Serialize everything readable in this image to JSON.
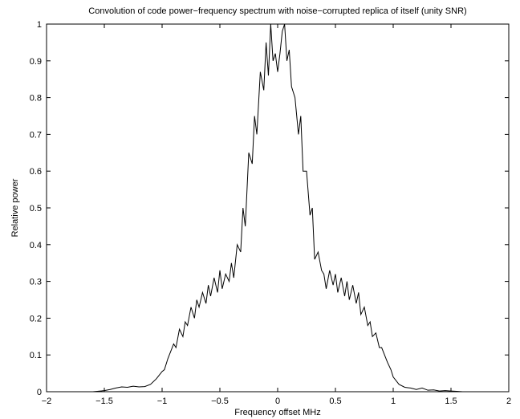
{
  "chart_data": {
    "type": "line",
    "title": "Convolution of code power−frequency spectrum with noise−corrupted replica of itself (unity SNR)",
    "xlabel": "Frequency offset MHz",
    "ylabel": "Relative power",
    "xlim": [
      -2,
      2
    ],
    "ylim": [
      0,
      1
    ],
    "xticks": [
      -2,
      -1.5,
      -1,
      -0.5,
      0,
      0.5,
      1,
      1.5,
      2
    ],
    "xtick_labels": [
      "−2",
      "−1.5",
      "−1",
      "−0.5",
      "0",
      "0.5",
      "1",
      "1.5",
      "2"
    ],
    "yticks": [
      0,
      0.1,
      0.2,
      0.3,
      0.4,
      0.5,
      0.6,
      0.7,
      0.8,
      0.9,
      1
    ],
    "ytick_labels": [
      "0",
      "0.1",
      "0.2",
      "0.3",
      "0.4",
      "0.5",
      "0.6",
      "0.7",
      "0.8",
      "0.9",
      "1"
    ],
    "grid": false,
    "line_color": "#000000",
    "series": [
      {
        "x": [
          -1.6,
          -1.5,
          -1.45,
          -1.4,
          -1.35,
          -1.3,
          -1.25,
          -1.2,
          -1.15,
          -1.1,
          -1.05,
          -1.0,
          -0.98,
          -0.95,
          -0.9,
          -0.88,
          -0.85,
          -0.82,
          -0.8,
          -0.78,
          -0.75,
          -0.72,
          -0.7,
          -0.68,
          -0.65,
          -0.62,
          -0.6,
          -0.58,
          -0.55,
          -0.52,
          -0.5,
          -0.48,
          -0.45,
          -0.42,
          -0.4,
          -0.38,
          -0.35,
          -0.32,
          -0.3,
          -0.28,
          -0.25,
          -0.22,
          -0.2,
          -0.18,
          -0.15,
          -0.12,
          -0.1,
          -0.08,
          -0.06,
          -0.04,
          -0.02,
          0.0,
          0.02,
          0.04,
          0.06,
          0.08,
          0.1,
          0.12,
          0.15,
          0.18,
          0.2,
          0.22,
          0.25,
          0.28,
          0.3,
          0.32,
          0.35,
          0.38,
          0.4,
          0.42,
          0.45,
          0.48,
          0.5,
          0.52,
          0.55,
          0.58,
          0.6,
          0.62,
          0.65,
          0.68,
          0.7,
          0.72,
          0.75,
          0.78,
          0.8,
          0.82,
          0.85,
          0.88,
          0.9,
          0.95,
          0.98,
          1.0,
          1.05,
          1.1,
          1.15,
          1.2,
          1.25,
          1.3,
          1.35,
          1.4,
          1.45,
          1.5,
          1.55,
          1.6
        ],
        "y": [
          0.0,
          0.003,
          0.006,
          0.01,
          0.013,
          0.012,
          0.015,
          0.013,
          0.014,
          0.02,
          0.035,
          0.055,
          0.06,
          0.09,
          0.13,
          0.12,
          0.17,
          0.15,
          0.19,
          0.18,
          0.23,
          0.2,
          0.25,
          0.23,
          0.27,
          0.24,
          0.29,
          0.26,
          0.31,
          0.27,
          0.33,
          0.28,
          0.32,
          0.3,
          0.35,
          0.31,
          0.4,
          0.38,
          0.5,
          0.45,
          0.65,
          0.62,
          0.75,
          0.7,
          0.87,
          0.82,
          0.95,
          0.86,
          1.0,
          0.9,
          0.92,
          0.87,
          0.92,
          0.98,
          1.0,
          0.9,
          0.93,
          0.83,
          0.8,
          0.7,
          0.75,
          0.6,
          0.6,
          0.48,
          0.5,
          0.36,
          0.38,
          0.33,
          0.32,
          0.28,
          0.33,
          0.29,
          0.32,
          0.27,
          0.31,
          0.26,
          0.3,
          0.25,
          0.29,
          0.24,
          0.27,
          0.21,
          0.23,
          0.18,
          0.19,
          0.15,
          0.16,
          0.12,
          0.12,
          0.08,
          0.06,
          0.04,
          0.02,
          0.012,
          0.01,
          0.006,
          0.01,
          0.004,
          0.005,
          0.002,
          0.003,
          0.002,
          0.001,
          0.0
        ]
      }
    ]
  }
}
